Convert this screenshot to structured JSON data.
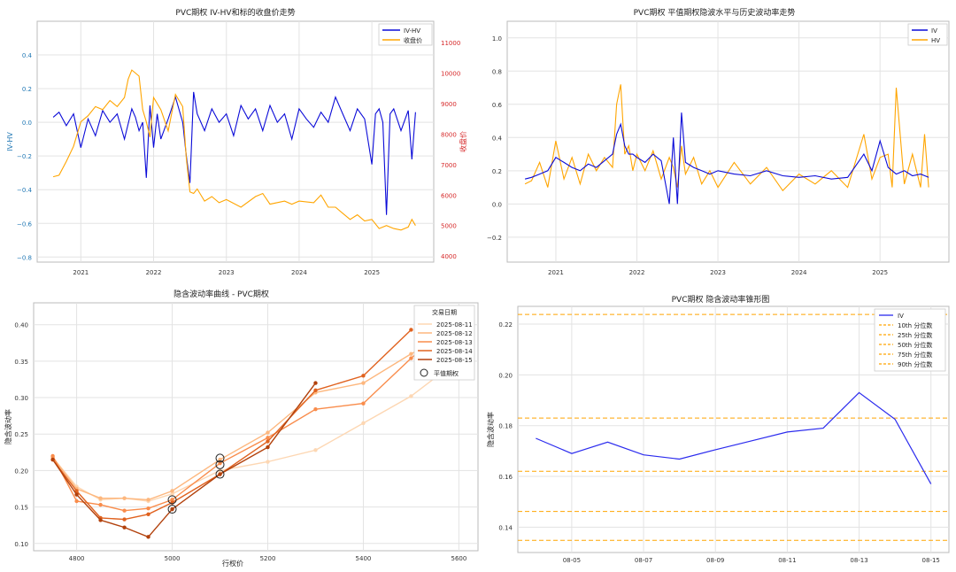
{
  "chart_data": [
    {
      "type": "line",
      "title": "PVC期权 IV-HV和标的收盘价走势",
      "xlabel": "",
      "ylabel": "IV-HV",
      "y2label": "收盘价",
      "x_ticks": [
        "2021",
        "2022",
        "2023",
        "2024",
        "2025"
      ],
      "xlim": [
        2020.4,
        2025.85
      ],
      "ylim": [
        -0.83,
        0.6
      ],
      "y_ticks": [
        0.4,
        0.2,
        0.0,
        -0.2,
        -0.4,
        -0.6,
        -0.8
      ],
      "y_tick_labels": [
        "0.4",
        "0.2",
        "0.0",
        "−0.2",
        "−0.4",
        "−0.6",
        "−0.8"
      ],
      "y2lim": [
        3800,
        11700
      ],
      "y2_ticks": [
        11000,
        10000,
        9000,
        8000,
        7000,
        6000,
        5000,
        4000
      ],
      "y2_tick_labels": [
        "11000",
        "10000",
        "9000",
        "8000",
        "7000",
        "6000",
        "5000",
        "4000"
      ],
      "legend": [
        "IV-HV",
        "收盘价"
      ],
      "legend_position": "top-right",
      "series": [
        {
          "name": "IV-HV",
          "color": "#0b0bd8",
          "axis": "left",
          "x": [
            2020.62,
            2020.7,
            2020.8,
            2020.9,
            2021.0,
            2021.1,
            2021.2,
            2021.3,
            2021.4,
            2021.5,
            2021.6,
            2021.7,
            2021.75,
            2021.8,
            2021.85,
            2021.9,
            2021.95,
            2022.0,
            2022.05,
            2022.1,
            2022.2,
            2022.3,
            2022.4,
            2022.45,
            2022.5,
            2022.55,
            2022.6,
            2022.7,
            2022.8,
            2022.9,
            2023.0,
            2023.1,
            2023.2,
            2023.3,
            2023.4,
            2023.5,
            2023.6,
            2023.7,
            2023.8,
            2023.9,
            2024.0,
            2024.1,
            2024.2,
            2024.3,
            2024.4,
            2024.5,
            2024.6,
            2024.7,
            2024.8,
            2024.9,
            2025.0,
            2025.05,
            2025.1,
            2025.15,
            2025.2,
            2025.25,
            2025.3,
            2025.4,
            2025.5,
            2025.55,
            2025.6
          ],
          "y": [
            0.03,
            0.06,
            -0.02,
            0.05,
            -0.15,
            0.02,
            -0.08,
            0.07,
            0.0,
            0.05,
            -0.1,
            0.08,
            0.03,
            -0.05,
            0.0,
            -0.33,
            0.1,
            -0.15,
            0.05,
            -0.1,
            0.02,
            0.15,
            0.0,
            -0.2,
            -0.36,
            0.18,
            0.05,
            -0.05,
            0.08,
            0.0,
            0.05,
            -0.08,
            0.1,
            0.02,
            0.08,
            -0.05,
            0.1,
            0.0,
            0.05,
            -0.1,
            0.08,
            0.02,
            -0.03,
            0.06,
            0.0,
            0.15,
            0.05,
            -0.05,
            0.08,
            0.02,
            -0.25,
            0.05,
            0.08,
            0.0,
            -0.55,
            0.05,
            0.08,
            -0.05,
            0.07,
            -0.22,
            0.06
          ]
        },
        {
          "name": "收盘价",
          "color": "#ffa500",
          "axis": "right",
          "x": [
            2020.62,
            2020.7,
            2020.8,
            2020.9,
            2021.0,
            2021.1,
            2021.2,
            2021.3,
            2021.4,
            2021.5,
            2021.6,
            2021.65,
            2021.7,
            2021.75,
            2021.8,
            2021.85,
            2021.9,
            2021.95,
            2022.0,
            2022.1,
            2022.2,
            2022.3,
            2022.4,
            2022.45,
            2022.5,
            2022.55,
            2022.6,
            2022.7,
            2022.8,
            2022.9,
            2023.0,
            2023.2,
            2023.4,
            2023.5,
            2023.6,
            2023.8,
            2023.9,
            2024.0,
            2024.2,
            2024.3,
            2024.4,
            2024.5,
            2024.6,
            2024.7,
            2024.8,
            2024.9,
            2025.0,
            2025.1,
            2025.2,
            2025.3,
            2025.4,
            2025.5,
            2025.55,
            2025.6
          ],
          "y": [
            6600,
            6650,
            7100,
            7600,
            8400,
            8600,
            8900,
            8800,
            9100,
            8900,
            9200,
            9800,
            10100,
            10000,
            9900,
            8800,
            8400,
            7900,
            9200,
            8800,
            8100,
            9300,
            8900,
            7200,
            6100,
            6050,
            6200,
            5800,
            5950,
            5750,
            5850,
            5600,
            5950,
            6050,
            5700,
            5800,
            5700,
            5800,
            5750,
            6000,
            5600,
            5600,
            5400,
            5200,
            5350,
            5150,
            5200,
            4900,
            5000,
            4900,
            4850,
            4950,
            5200,
            5000
          ]
        }
      ]
    },
    {
      "type": "line",
      "title": "PVC期权 平值期权隐波水平与历史波动率走势",
      "xlabel": "",
      "ylabel": "",
      "x_ticks": [
        "2021",
        "2022",
        "2023",
        "2024",
        "2025"
      ],
      "xlim": [
        2020.4,
        2025.85
      ],
      "ylim": [
        -0.35,
        1.1
      ],
      "y_ticks": [
        1.0,
        0.8,
        0.6,
        0.4,
        0.2,
        0.0,
        -0.2
      ],
      "y_tick_labels": [
        "1.0",
        "0.8",
        "0.6",
        "0.4",
        "0.2",
        "0.0",
        "−0.2"
      ],
      "legend": [
        "IV",
        "HV"
      ],
      "legend_position": "top-right",
      "series": [
        {
          "name": "IV",
          "color": "#0b0bd8",
          "x": [
            2020.62,
            2020.7,
            2020.8,
            2020.9,
            2021.0,
            2021.1,
            2021.2,
            2021.3,
            2021.4,
            2021.5,
            2021.6,
            2021.7,
            2021.75,
            2021.8,
            2021.85,
            2021.9,
            2021.95,
            2022.0,
            2022.1,
            2022.2,
            2022.3,
            2022.4,
            2022.45,
            2022.5,
            2022.55,
            2022.6,
            2022.7,
            2022.8,
            2022.9,
            2023.0,
            2023.2,
            2023.4,
            2023.6,
            2023.8,
            2024.0,
            2024.2,
            2024.4,
            2024.6,
            2024.8,
            2024.9,
            2025.0,
            2025.1,
            2025.2,
            2025.3,
            2025.4,
            2025.5,
            2025.6
          ],
          "y": [
            0.15,
            0.16,
            0.18,
            0.2,
            0.28,
            0.25,
            0.22,
            0.2,
            0.24,
            0.22,
            0.26,
            0.3,
            0.42,
            0.48,
            0.35,
            0.3,
            0.3,
            0.28,
            0.25,
            0.3,
            0.26,
            0.0,
            0.4,
            0.0,
            0.55,
            0.25,
            0.22,
            0.2,
            0.18,
            0.2,
            0.18,
            0.17,
            0.2,
            0.17,
            0.16,
            0.17,
            0.15,
            0.16,
            0.3,
            0.2,
            0.38,
            0.22,
            0.18,
            0.2,
            0.17,
            0.18,
            0.16
          ]
        },
        {
          "name": "HV",
          "color": "#ffa500",
          "x": [
            2020.62,
            2020.7,
            2020.8,
            2020.9,
            2021.0,
            2021.1,
            2021.2,
            2021.3,
            2021.4,
            2021.5,
            2021.6,
            2021.7,
            2021.75,
            2021.8,
            2021.85,
            2021.9,
            2021.95,
            2022.0,
            2022.1,
            2022.2,
            2022.3,
            2022.4,
            2022.45,
            2022.5,
            2022.55,
            2022.6,
            2022.7,
            2022.8,
            2022.9,
            2023.0,
            2023.2,
            2023.4,
            2023.6,
            2023.8,
            2024.0,
            2024.2,
            2024.4,
            2024.6,
            2024.8,
            2024.9,
            2025.0,
            2025.1,
            2025.15,
            2025.2,
            2025.3,
            2025.4,
            2025.5,
            2025.55,
            2025.6
          ],
          "y": [
            0.12,
            0.14,
            0.25,
            0.1,
            0.38,
            0.15,
            0.28,
            0.12,
            0.3,
            0.2,
            0.28,
            0.22,
            0.6,
            0.72,
            0.3,
            0.35,
            0.2,
            0.3,
            0.2,
            0.32,
            0.15,
            0.28,
            0.22,
            0.1,
            0.35,
            0.18,
            0.28,
            0.12,
            0.2,
            0.1,
            0.25,
            0.12,
            0.22,
            0.08,
            0.18,
            0.12,
            0.2,
            0.1,
            0.42,
            0.15,
            0.28,
            0.3,
            0.1,
            0.7,
            0.12,
            0.3,
            0.1,
            0.42,
            0.1
          ]
        }
      ]
    },
    {
      "type": "line",
      "title": "隐含波动率曲线 - PVC期权",
      "xlabel": "行权价",
      "ylabel": "隐含波动率",
      "x_ticks": [
        4800,
        5000,
        5200,
        5400,
        5600
      ],
      "xlim": [
        4710,
        5640
      ],
      "ylim": [
        0.09,
        0.43
      ],
      "y_ticks": [
        0.4,
        0.35,
        0.3,
        0.25,
        0.2,
        0.15,
        0.1
      ],
      "y_tick_labels": [
        "0.40",
        "0.35",
        "0.30",
        "0.25",
        "0.20",
        "0.15",
        "0.10"
      ],
      "legend_title": "交易日期",
      "legend_marker_label": "平值期权",
      "legend_position": "top-right",
      "series": [
        {
          "name": "2025-08-11",
          "color": "#fdd7b3",
          "x": [
            4750,
            4800,
            4850,
            4900,
            4950,
            5000,
            5100,
            5200,
            5300,
            5400,
            5500,
            5600
          ],
          "y": [
            0.218,
            0.178,
            0.16,
            0.162,
            0.158,
            0.168,
            0.2,
            0.212,
            0.228,
            0.265,
            0.302,
            0.352
          ]
        },
        {
          "name": "2025-08-12",
          "color": "#fdb77e",
          "x": [
            4750,
            4800,
            4850,
            4900,
            4950,
            5000,
            5100,
            5200,
            5300,
            5400,
            5500,
            5600
          ],
          "y": [
            0.218,
            0.175,
            0.162,
            0.162,
            0.16,
            0.172,
            0.215,
            0.252,
            0.307,
            0.32,
            0.36,
            0.394
          ]
        },
        {
          "name": "2025-08-13",
          "color": "#f98c4b",
          "x": [
            4750,
            4800,
            4850,
            4900,
            4950,
            5000,
            5100,
            5200,
            5300,
            5400,
            5500,
            5600
          ],
          "y": [
            0.22,
            0.158,
            0.153,
            0.145,
            0.148,
            0.16,
            0.21,
            0.245,
            0.284,
            0.292,
            0.354,
            0.412
          ]
        },
        {
          "name": "2025-08-14",
          "color": "#e0621f",
          "x": [
            4750,
            4800,
            4850,
            4900,
            4950,
            5000,
            5100,
            5200,
            5300,
            5400,
            5500
          ],
          "y": [
            0.215,
            0.172,
            0.135,
            0.133,
            0.14,
            0.156,
            0.195,
            0.24,
            0.31,
            0.33,
            0.393
          ]
        },
        {
          "name": "2025-08-15",
          "color": "#b2410c",
          "x": [
            4750,
            4800,
            4850,
            4900,
            4950,
            5000,
            5100,
            5200,
            5300
          ],
          "y": [
            0.215,
            0.167,
            0.132,
            0.122,
            0.109,
            0.147,
            0.195,
            0.232,
            0.32
          ]
        }
      ],
      "atm_points": [
        {
          "x": 5000,
          "y": 0.16
        },
        {
          "x": 5000,
          "y": 0.147
        },
        {
          "x": 5100,
          "y": 0.217
        },
        {
          "x": 5100,
          "y": 0.208
        },
        {
          "x": 5100,
          "y": 0.195
        }
      ]
    },
    {
      "type": "line",
      "title": "PVC期权 隐含波动率锥形图",
      "xlabel": "",
      "ylabel": "隐含波动率",
      "x_ticks": [
        "08-05",
        "08-07",
        "08-09",
        "08-11",
        "08-13",
        "08-15"
      ],
      "x_tick_values": [
        5,
        7,
        9,
        11,
        13,
        15
      ],
      "xlim": [
        3.5,
        15.5
      ],
      "ylim": [
        0.13,
        0.227
      ],
      "y_ticks": [
        0.22,
        0.2,
        0.18,
        0.16,
        0.14
      ],
      "y_tick_labels": [
        "0.22",
        "0.20",
        "0.18",
        "0.16",
        "0.14"
      ],
      "legend": [
        "IV",
        "10th 分位数",
        "25th 分位数",
        "50th 分位数",
        "75th 分位数",
        "90th 分位数"
      ],
      "legend_position": "top-right",
      "series": [
        {
          "name": "IV",
          "color": "#2b2bee",
          "x": [
            4,
            5,
            6,
            7,
            8,
            9,
            10,
            11,
            12,
            13,
            14,
            15
          ],
          "y": [
            0.175,
            0.169,
            0.1735,
            0.1685,
            0.1668,
            0.1705,
            0.174,
            0.1775,
            0.179,
            0.193,
            0.1825,
            0.157
          ]
        }
      ],
      "hlines": [
        {
          "name": "10th 分位数",
          "y": 0.1348,
          "color": "#ffa500"
        },
        {
          "name": "25th 分位数",
          "y": 0.1462,
          "color": "#ffa500"
        },
        {
          "name": "50th 分位数",
          "y": 0.162,
          "color": "#ffa500"
        },
        {
          "name": "75th 分位数",
          "y": 0.183,
          "color": "#ffa500"
        },
        {
          "name": "90th 分位数",
          "y": 0.2238,
          "color": "#ffa500"
        }
      ]
    }
  ]
}
